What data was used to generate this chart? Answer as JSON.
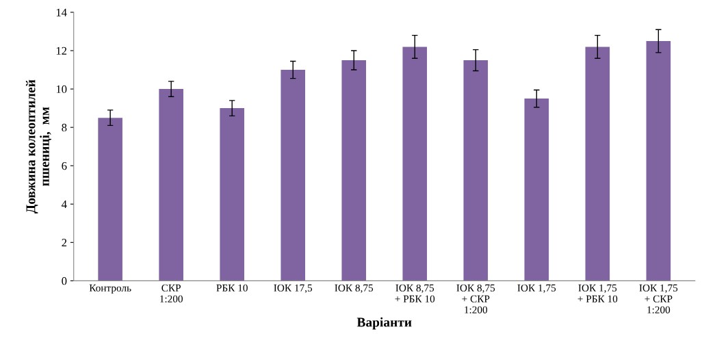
{
  "chart_data": {
    "type": "bar",
    "xlabel": "Варіанти",
    "ylabel": "Довжина колеоптилей\nпшениці,  мм",
    "categories": [
      "Контроль",
      "СКР\n1:200",
      "РБК 10",
      "ІОК 17,5",
      "ІОК 8,75",
      "ІОК 8,75\n+ РБК 10",
      "ІОК 8,75\n+ СКР\n1:200",
      "ІОК 1,75",
      "ІОК 1,75\n+ РБК 10",
      "ІОК 1,75\n+ СКР\n1:200"
    ],
    "values": [
      8.5,
      10.0,
      9.0,
      11.0,
      11.5,
      12.2,
      11.5,
      9.5,
      12.2,
      12.5
    ],
    "errors": [
      0.4,
      0.4,
      0.4,
      0.45,
      0.5,
      0.6,
      0.55,
      0.45,
      0.6,
      0.6
    ],
    "color": "#8064a2",
    "ylim": [
      0,
      14
    ],
    "yticks": [
      0,
      2,
      4,
      6,
      8,
      10,
      12,
      14
    ],
    "grid": false,
    "legend": false
  }
}
